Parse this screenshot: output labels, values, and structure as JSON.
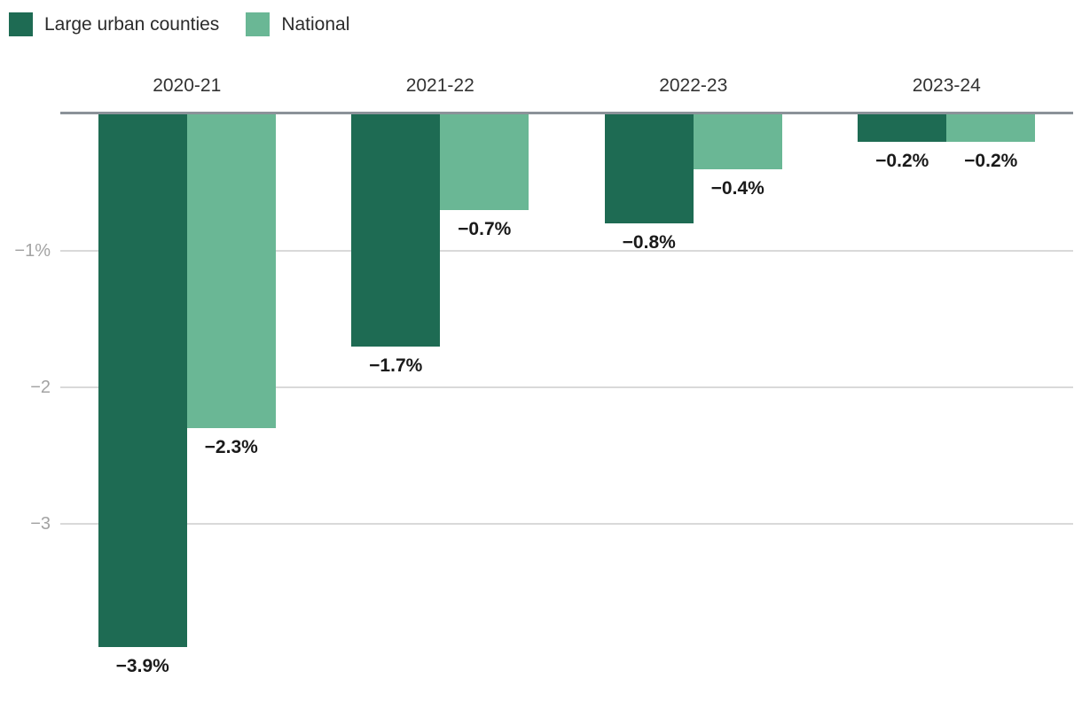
{
  "legend": {
    "items": [
      {
        "label": "Large urban counties",
        "color": "#1e6b53"
      },
      {
        "label": "National",
        "color": "#6ab795"
      }
    ]
  },
  "chart_data": {
    "type": "bar",
    "orientation": "vertical-negative",
    "title": "",
    "categories": [
      "2020-21",
      "2021-22",
      "2022-23",
      "2023-24"
    ],
    "series": [
      {
        "name": "Large urban counties",
        "color": "#1e6b53",
        "values": [
          -3.9,
          -1.7,
          -0.8,
          -0.2
        ],
        "data_labels": [
          "−3.9%",
          "−1.7%",
          "−0.8%",
          "−0.2%"
        ]
      },
      {
        "name": "National",
        "color": "#6ab795",
        "values": [
          -2.3,
          -0.7,
          -0.4,
          -0.2
        ],
        "data_labels": [
          "−2.3%",
          "−0.7%",
          "−0.4%",
          "−0.2%"
        ]
      }
    ],
    "y_axis": {
      "range": [
        -3.95,
        0
      ],
      "ticks": [
        {
          "value": -1,
          "label": "−1%"
        },
        {
          "value": -2,
          "label": "−2"
        },
        {
          "value": -3,
          "label": "−3"
        }
      ]
    },
    "grid": "horizontal",
    "legend_position": "top-left",
    "colors": {
      "baseline": "#8b9299",
      "gridline": "#d9d9d9",
      "tick_label": "#a3a3a3",
      "category_label": "#333333",
      "value_label": "#1a1a1a",
      "background": "#ffffff"
    }
  }
}
